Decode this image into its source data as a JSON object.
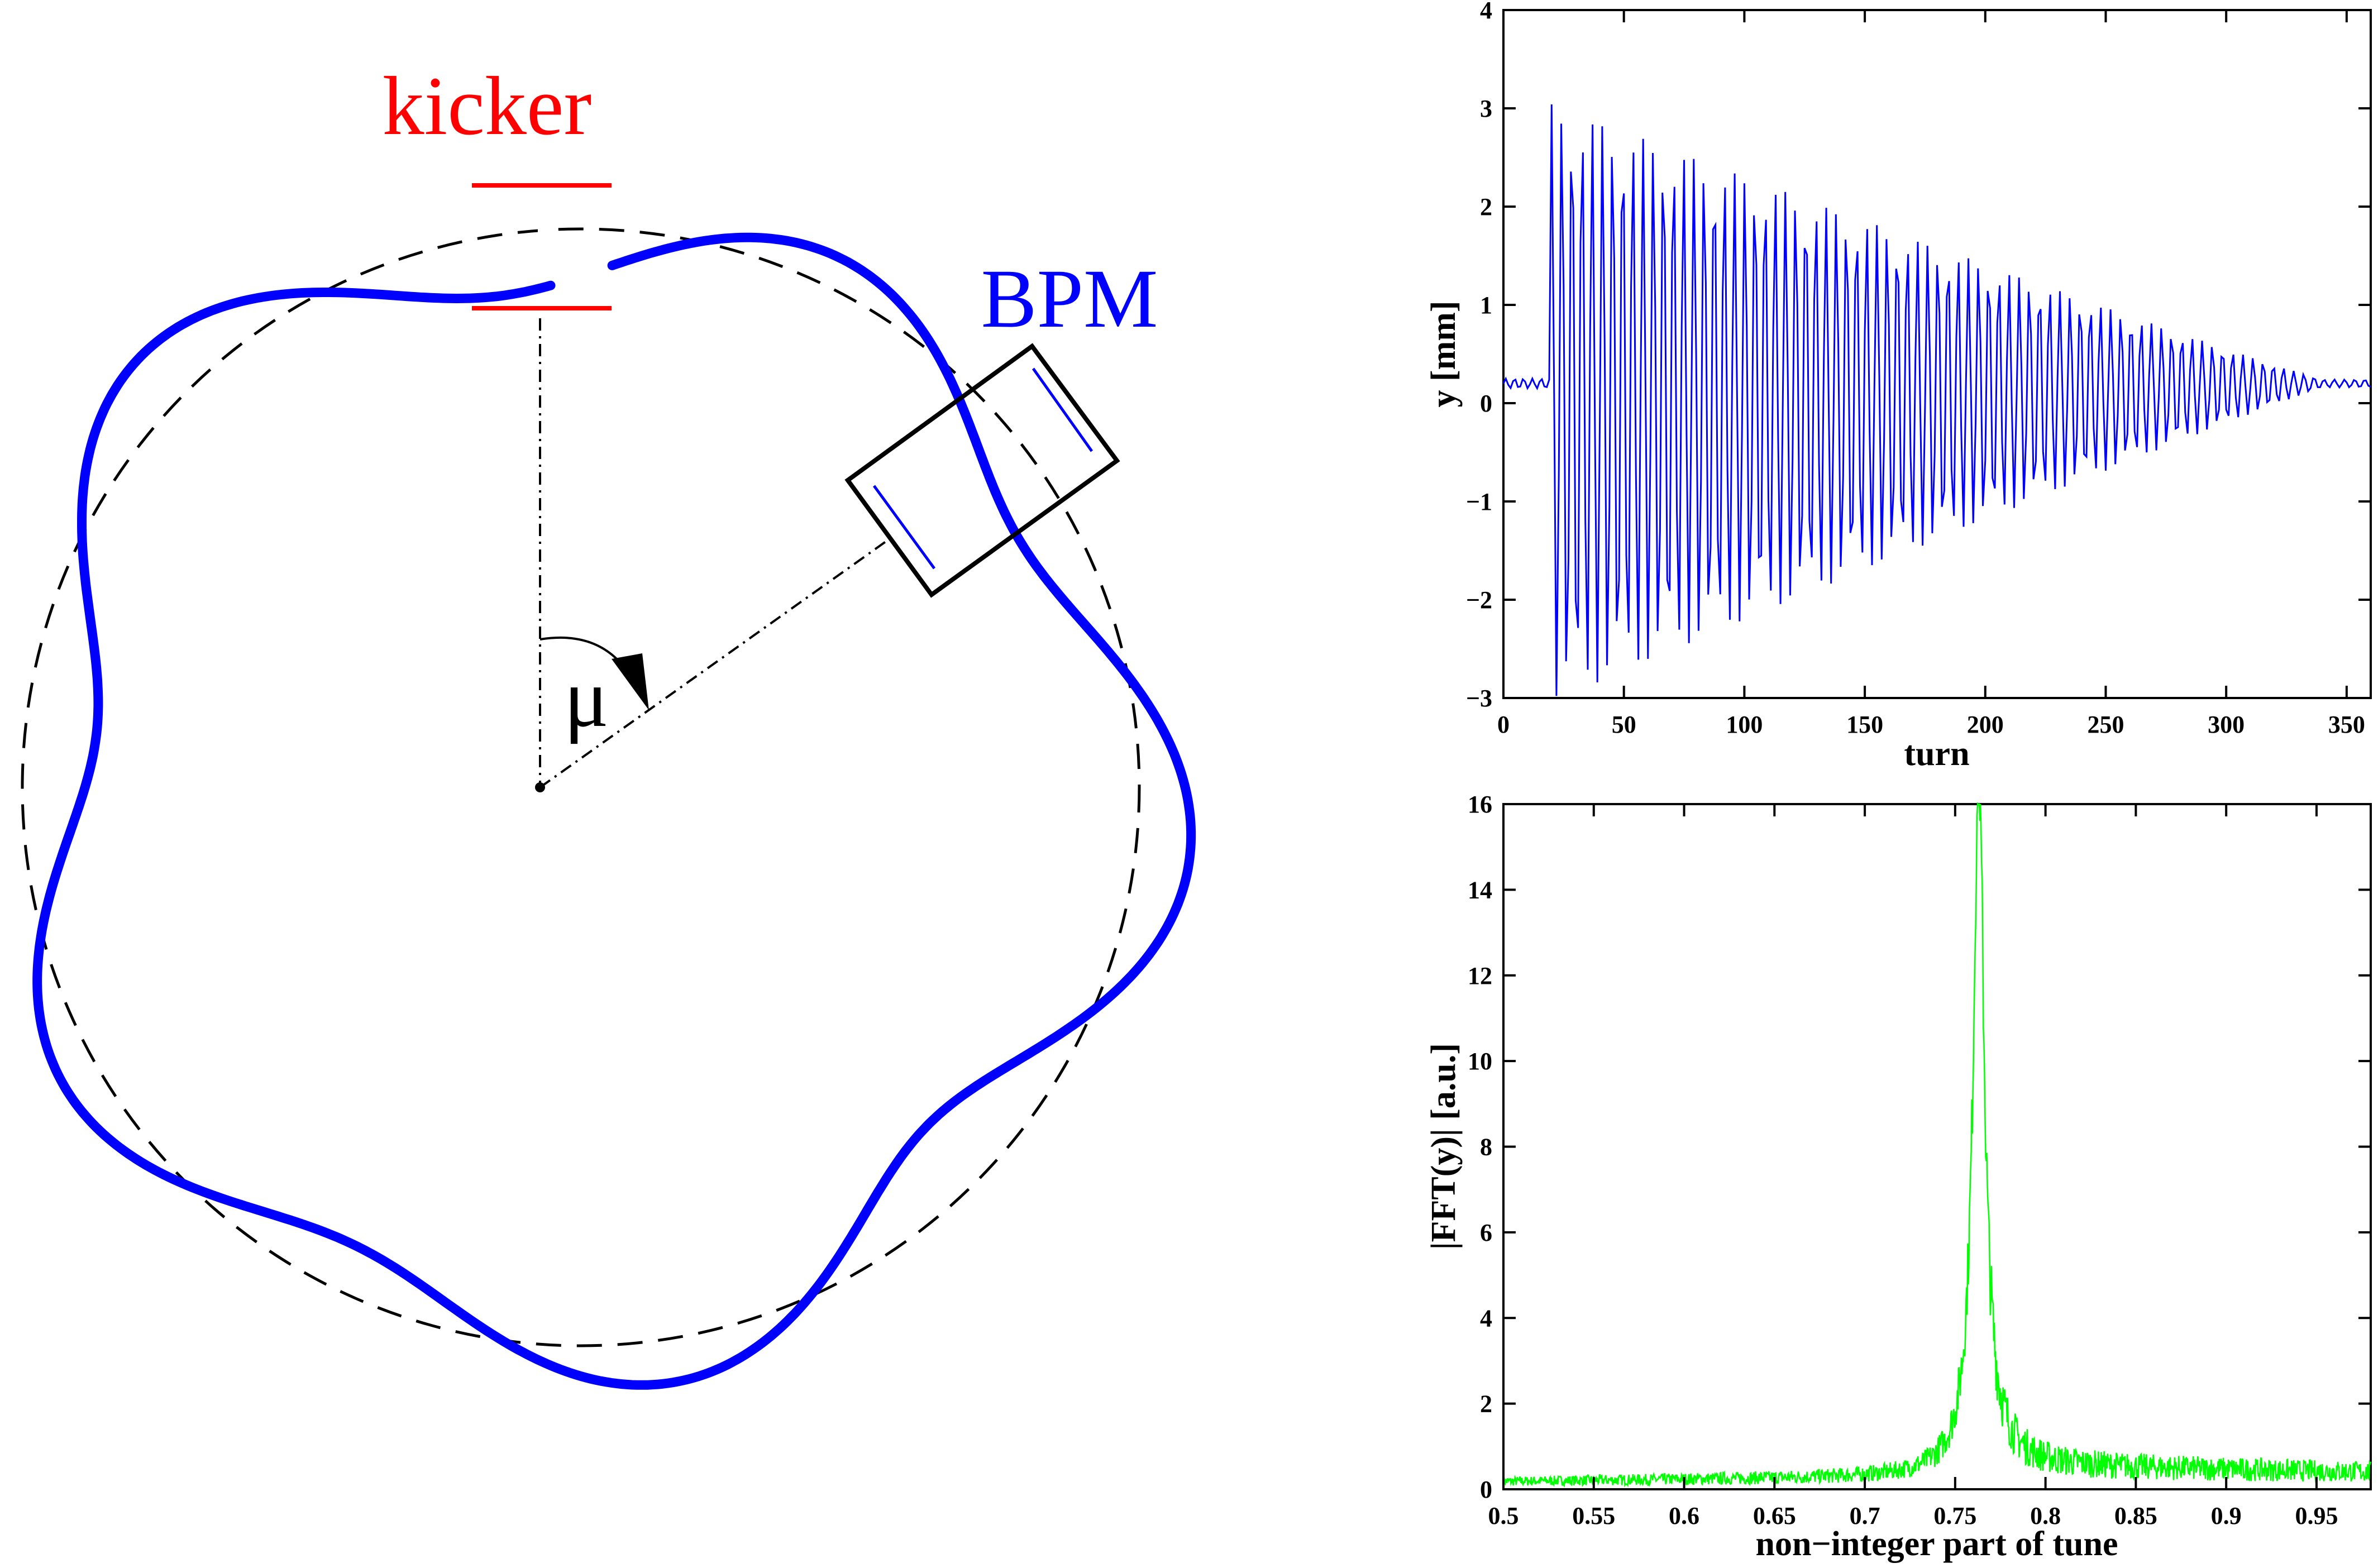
{
  "diagram": {
    "kicker_label": "kicker",
    "bpm_label": "BPM",
    "phase_label": "μ",
    "colors": {
      "orbit": "#0000ff",
      "kicker": "#ff0000",
      "reference_orbit": "#000000",
      "bpm_box": "#000000"
    }
  },
  "chart_data": [
    {
      "type": "line",
      "xlabel": "turn",
      "ylabel": "y [mm]",
      "xlim": [
        0,
        360
      ],
      "ylim": [
        -3,
        4
      ],
      "xticks": [
        "0",
        "50",
        "100",
        "150",
        "200",
        "250",
        "300",
        "350"
      ],
      "yticks": [
        "−3",
        "−2",
        "−1",
        "0",
        "1",
        "2",
        "3",
        "4"
      ],
      "color": "#0000ff",
      "grid": false,
      "description_of_signal": {
        "baseline_mm": 0.2,
        "kick_turn": 20,
        "initial_amplitude_mm": 3.0,
        "damped_to_baseline_turn": 340,
        "fractional_tune": 0.763
      }
    },
    {
      "type": "line",
      "xlabel": "non−integer part of tune",
      "ylabel": "|FFT(y)| [a.u.]",
      "xlim": [
        0.5,
        0.98
      ],
      "ylim": [
        0,
        16
      ],
      "xticks": [
        "0.5",
        "0.55",
        "0.6",
        "0.65",
        "0.7",
        "0.75",
        "0.8",
        "0.85",
        "0.9",
        "0.95"
      ],
      "yticks": [
        "0",
        "2",
        "4",
        "6",
        "8",
        "10",
        "12",
        "14",
        "16"
      ],
      "color": "#00ff00",
      "grid": false,
      "peak": {
        "x": 0.763,
        "y": 15.2
      }
    }
  ]
}
